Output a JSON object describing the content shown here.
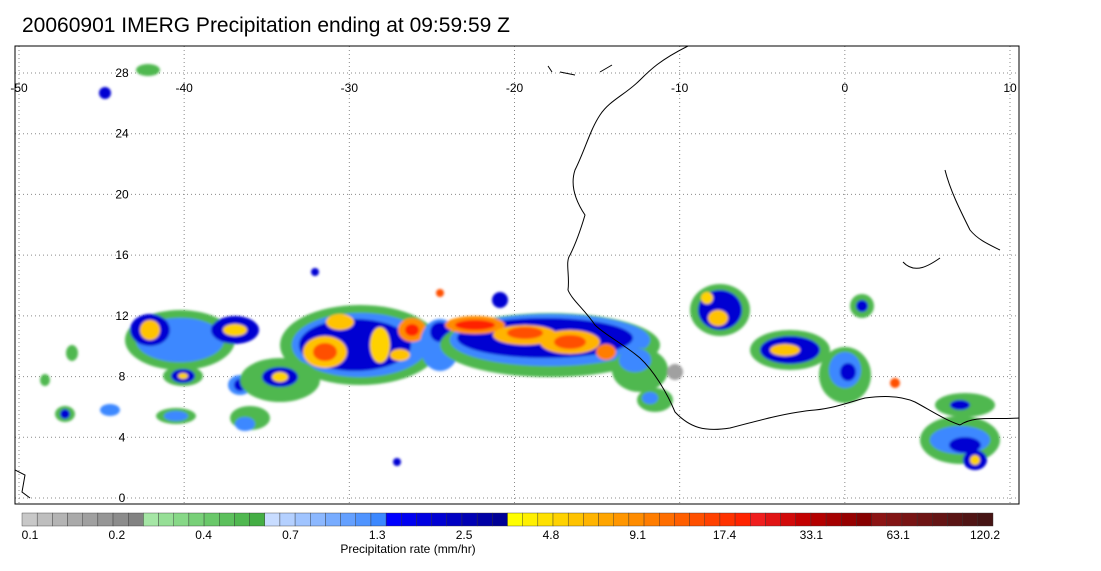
{
  "title": "20060901 IMERG Precipitation ending at 09:59:59 Z",
  "map": {
    "lon_range": [
      -50,
      10
    ],
    "lat_range": [
      -0.5,
      30
    ],
    "lon_ticks": [
      "-50",
      "-40",
      "-30",
      "-20",
      "-10",
      "0",
      "10"
    ],
    "lat_ticks": [
      "0",
      "4",
      "8",
      "12",
      "16",
      "20",
      "24",
      "28"
    ],
    "gridlines": "dotted"
  },
  "colorbar": {
    "title": "Precipitation rate (mm/hr)",
    "tick_labels": [
      "0.1",
      "0.2",
      "0.4",
      "0.7",
      "1.3",
      "2.5",
      "4.8",
      "9.1",
      "17.4",
      "33.1",
      "63.1",
      "120.2"
    ],
    "colors": [
      "#c8c8c8",
      "#bebebe",
      "#b4b4b4",
      "#aaaaaa",
      "#a0a0a0",
      "#969696",
      "#8c8c8c",
      "#828282",
      "#a5e6a5",
      "#96df96",
      "#87d887",
      "#78d078",
      "#6ac86a",
      "#5cc05c",
      "#50b850",
      "#44ae44",
      "#c8dcff",
      "#b4d0ff",
      "#a0c4ff",
      "#8cb8ff",
      "#78acff",
      "#64a0ff",
      "#5094ff",
      "#3c88ff",
      "#0000ff",
      "#0000f0",
      "#0000e1",
      "#0000d2",
      "#0000c3",
      "#0000b4",
      "#0000a5",
      "#000096",
      "#ffff00",
      "#fff000",
      "#ffe100",
      "#ffd200",
      "#ffc300",
      "#ffb400",
      "#ffa500",
      "#ff9600",
      "#ff8c00",
      "#ff7d00",
      "#ff6e00",
      "#ff5f00",
      "#ff5000",
      "#ff4100",
      "#ff3200",
      "#ff2300",
      "#f01e1e",
      "#e11414",
      "#d20a0a",
      "#c30000",
      "#b40000",
      "#a50000",
      "#960000",
      "#870000",
      "#8c1414",
      "#821414",
      "#781414",
      "#6e1414",
      "#641414",
      "#5a1414",
      "#501414",
      "#461414"
    ]
  }
}
